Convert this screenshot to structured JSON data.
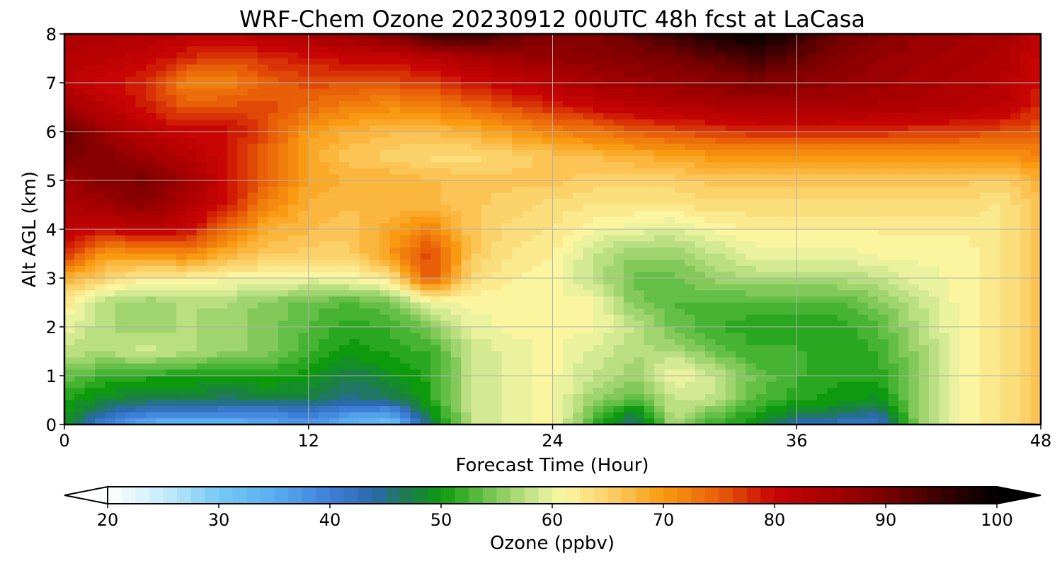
{
  "chart_data": {
    "type": "heatmap",
    "title": "WRF-Chem Ozone  20230912 00UTC 48h fcst at LaCasa",
    "xlabel": "Forecast Time (Hour)",
    "ylabel": "Alt AGL (km)",
    "xlim": [
      0,
      48
    ],
    "ylim": [
      0,
      8
    ],
    "xticks": [
      "0",
      "12",
      "24",
      "36",
      "48"
    ],
    "yticks": [
      "0",
      "1",
      "2",
      "3",
      "4",
      "5",
      "6",
      "7",
      "8"
    ],
    "grid": true,
    "colorbar": {
      "label": "Ozone  (ppbv)",
      "min": 20,
      "max": 100,
      "ticks": [
        "20",
        "30",
        "40",
        "50",
        "60",
        "70",
        "80",
        "90",
        "100"
      ],
      "extend": "both",
      "stops": [
        {
          "v": 20,
          "c": "#ffffff"
        },
        {
          "v": 25,
          "c": "#c8ecfb"
        },
        {
          "v": 30,
          "c": "#74c9f4"
        },
        {
          "v": 35,
          "c": "#58aef0"
        },
        {
          "v": 40,
          "c": "#3f7ed8"
        },
        {
          "v": 44,
          "c": "#2a6aa8"
        },
        {
          "v": 47,
          "c": "#1c7c4e"
        },
        {
          "v": 50,
          "c": "#0d9a0d"
        },
        {
          "v": 53,
          "c": "#52b83a"
        },
        {
          "v": 56,
          "c": "#9ad26a"
        },
        {
          "v": 59,
          "c": "#d8ec96"
        },
        {
          "v": 61,
          "c": "#fbf7a3"
        },
        {
          "v": 65,
          "c": "#fbd26a"
        },
        {
          "v": 70,
          "c": "#f99a10"
        },
        {
          "v": 75,
          "c": "#e85f08"
        },
        {
          "v": 80,
          "c": "#c80404"
        },
        {
          "v": 85,
          "c": "#a80000"
        },
        {
          "v": 90,
          "c": "#7a0000"
        },
        {
          "v": 95,
          "c": "#3a0000"
        },
        {
          "v": 100,
          "c": "#000000"
        }
      ]
    },
    "x": [
      0,
      2,
      4,
      6,
      8,
      10,
      12,
      14,
      16,
      18,
      20,
      22,
      24,
      26,
      28,
      30,
      32,
      34,
      36,
      38,
      40,
      42,
      44,
      46,
      48
    ],
    "y": [
      0,
      0.25,
      0.5,
      1,
      1.5,
      2,
      2.5,
      3,
      3.5,
      4,
      4.5,
      5,
      5.5,
      6,
      6.5,
      7,
      7.5,
      8
    ],
    "z": [
      [
        49,
        39,
        34,
        33,
        33,
        35,
        37,
        34,
        31,
        46,
        58,
        60,
        61,
        52,
        45,
        57,
        52,
        49,
        43,
        42,
        41,
        56,
        61,
        63,
        66
      ],
      [
        50,
        44,
        41,
        41,
        40,
        40,
        41,
        38,
        37,
        49,
        58,
        60,
        61,
        54,
        48,
        58,
        54,
        51,
        48,
        47,
        45,
        56,
        61,
        63,
        66
      ],
      [
        51,
        48,
        47,
        47,
        46,
        47,
        47,
        45,
        46,
        51,
        58,
        60,
        61,
        56,
        53,
        58,
        58,
        53,
        51,
        50,
        49,
        56,
        61,
        63,
        66
      ],
      [
        54,
        52,
        51,
        51,
        51,
        51,
        50,
        47,
        49,
        51,
        58,
        60,
        61,
        58,
        56,
        61,
        58,
        54,
        52,
        51,
        51,
        56,
        61,
        63,
        66
      ],
      [
        58,
        57,
        59,
        57,
        56,
        55,
        52,
        50,
        51,
        52,
        58,
        60,
        61,
        59,
        57,
        57,
        54,
        52,
        52,
        51,
        52,
        56,
        61,
        63,
        66
      ],
      [
        60,
        57,
        56,
        57,
        56,
        55,
        53,
        51,
        52,
        55,
        60,
        61,
        61,
        61,
        58,
        54,
        52,
        51,
        51,
        51,
        53,
        57,
        61,
        63,
        66
      ],
      [
        63,
        57,
        56,
        57,
        57,
        55,
        54,
        53,
        54,
        60,
        61,
        61,
        61,
        61,
        55,
        53,
        53,
        53,
        53,
        53,
        55,
        58,
        61,
        63,
        66
      ],
      [
        68,
        65,
        62,
        62,
        61,
        61,
        60,
        61,
        63,
        76,
        64,
        62,
        61,
        58,
        54,
        54,
        56,
        57,
        57,
        57,
        58,
        60,
        61,
        63,
        66
      ],
      [
        78,
        70,
        71,
        72,
        68,
        66,
        65,
        65,
        70,
        77,
        66,
        63,
        62,
        58,
        56,
        56,
        58,
        60,
        60,
        60,
        61,
        61,
        61,
        63,
        66
      ],
      [
        82,
        80,
        82,
        80,
        74,
        68,
        67,
        66,
        69,
        72,
        66,
        64,
        63,
        61,
        60,
        59,
        61,
        62,
        62,
        62,
        62,
        62,
        62,
        63,
        66
      ],
      [
        84,
        86,
        88,
        84,
        79,
        72,
        68,
        67,
        67,
        67,
        66,
        65,
        64,
        63,
        63,
        63,
        64,
        64,
        64,
        64,
        64,
        64,
        64,
        63,
        66
      ],
      [
        86,
        89,
        90,
        86,
        80,
        74,
        69,
        68,
        68,
        67,
        66,
        66,
        66,
        65,
        65,
        65,
        66,
        66,
        66,
        66,
        66,
        66,
        66,
        65,
        68
      ],
      [
        90,
        89,
        86,
        83,
        79,
        74,
        69,
        66,
        65,
        64,
        64,
        65,
        66,
        67,
        68,
        69,
        70,
        70,
        70,
        70,
        70,
        70,
        70,
        70,
        72
      ],
      [
        92,
        86,
        82,
        80,
        80,
        76,
        70,
        68,
        67,
        67,
        68,
        70,
        72,
        73,
        75,
        76,
        77,
        78,
        78,
        78,
        78,
        77,
        77,
        76,
        75
      ],
      [
        86,
        82,
        79,
        75,
        76,
        76,
        74,
        72,
        71,
        72,
        74,
        76,
        78,
        80,
        82,
        83,
        84,
        85,
        85,
        85,
        84,
        84,
        83,
        82,
        78
      ],
      [
        82,
        80,
        78,
        72,
        72,
        75,
        76,
        76,
        76,
        77,
        79,
        81,
        83,
        85,
        86,
        87,
        88,
        89,
        88,
        87,
        86,
        85,
        84,
        83,
        79
      ],
      [
        83,
        82,
        81,
        78,
        76,
        78,
        79,
        80,
        80,
        82,
        84,
        86,
        87,
        88,
        89,
        90,
        92,
        94,
        92,
        89,
        87,
        86,
        85,
        84,
        80
      ],
      [
        84,
        84,
        83,
        82,
        82,
        83,
        85,
        86,
        90,
        95,
        96,
        92,
        89,
        89,
        92,
        95,
        98,
        100,
        96,
        91,
        89,
        87,
        86,
        85,
        81
      ]
    ]
  }
}
